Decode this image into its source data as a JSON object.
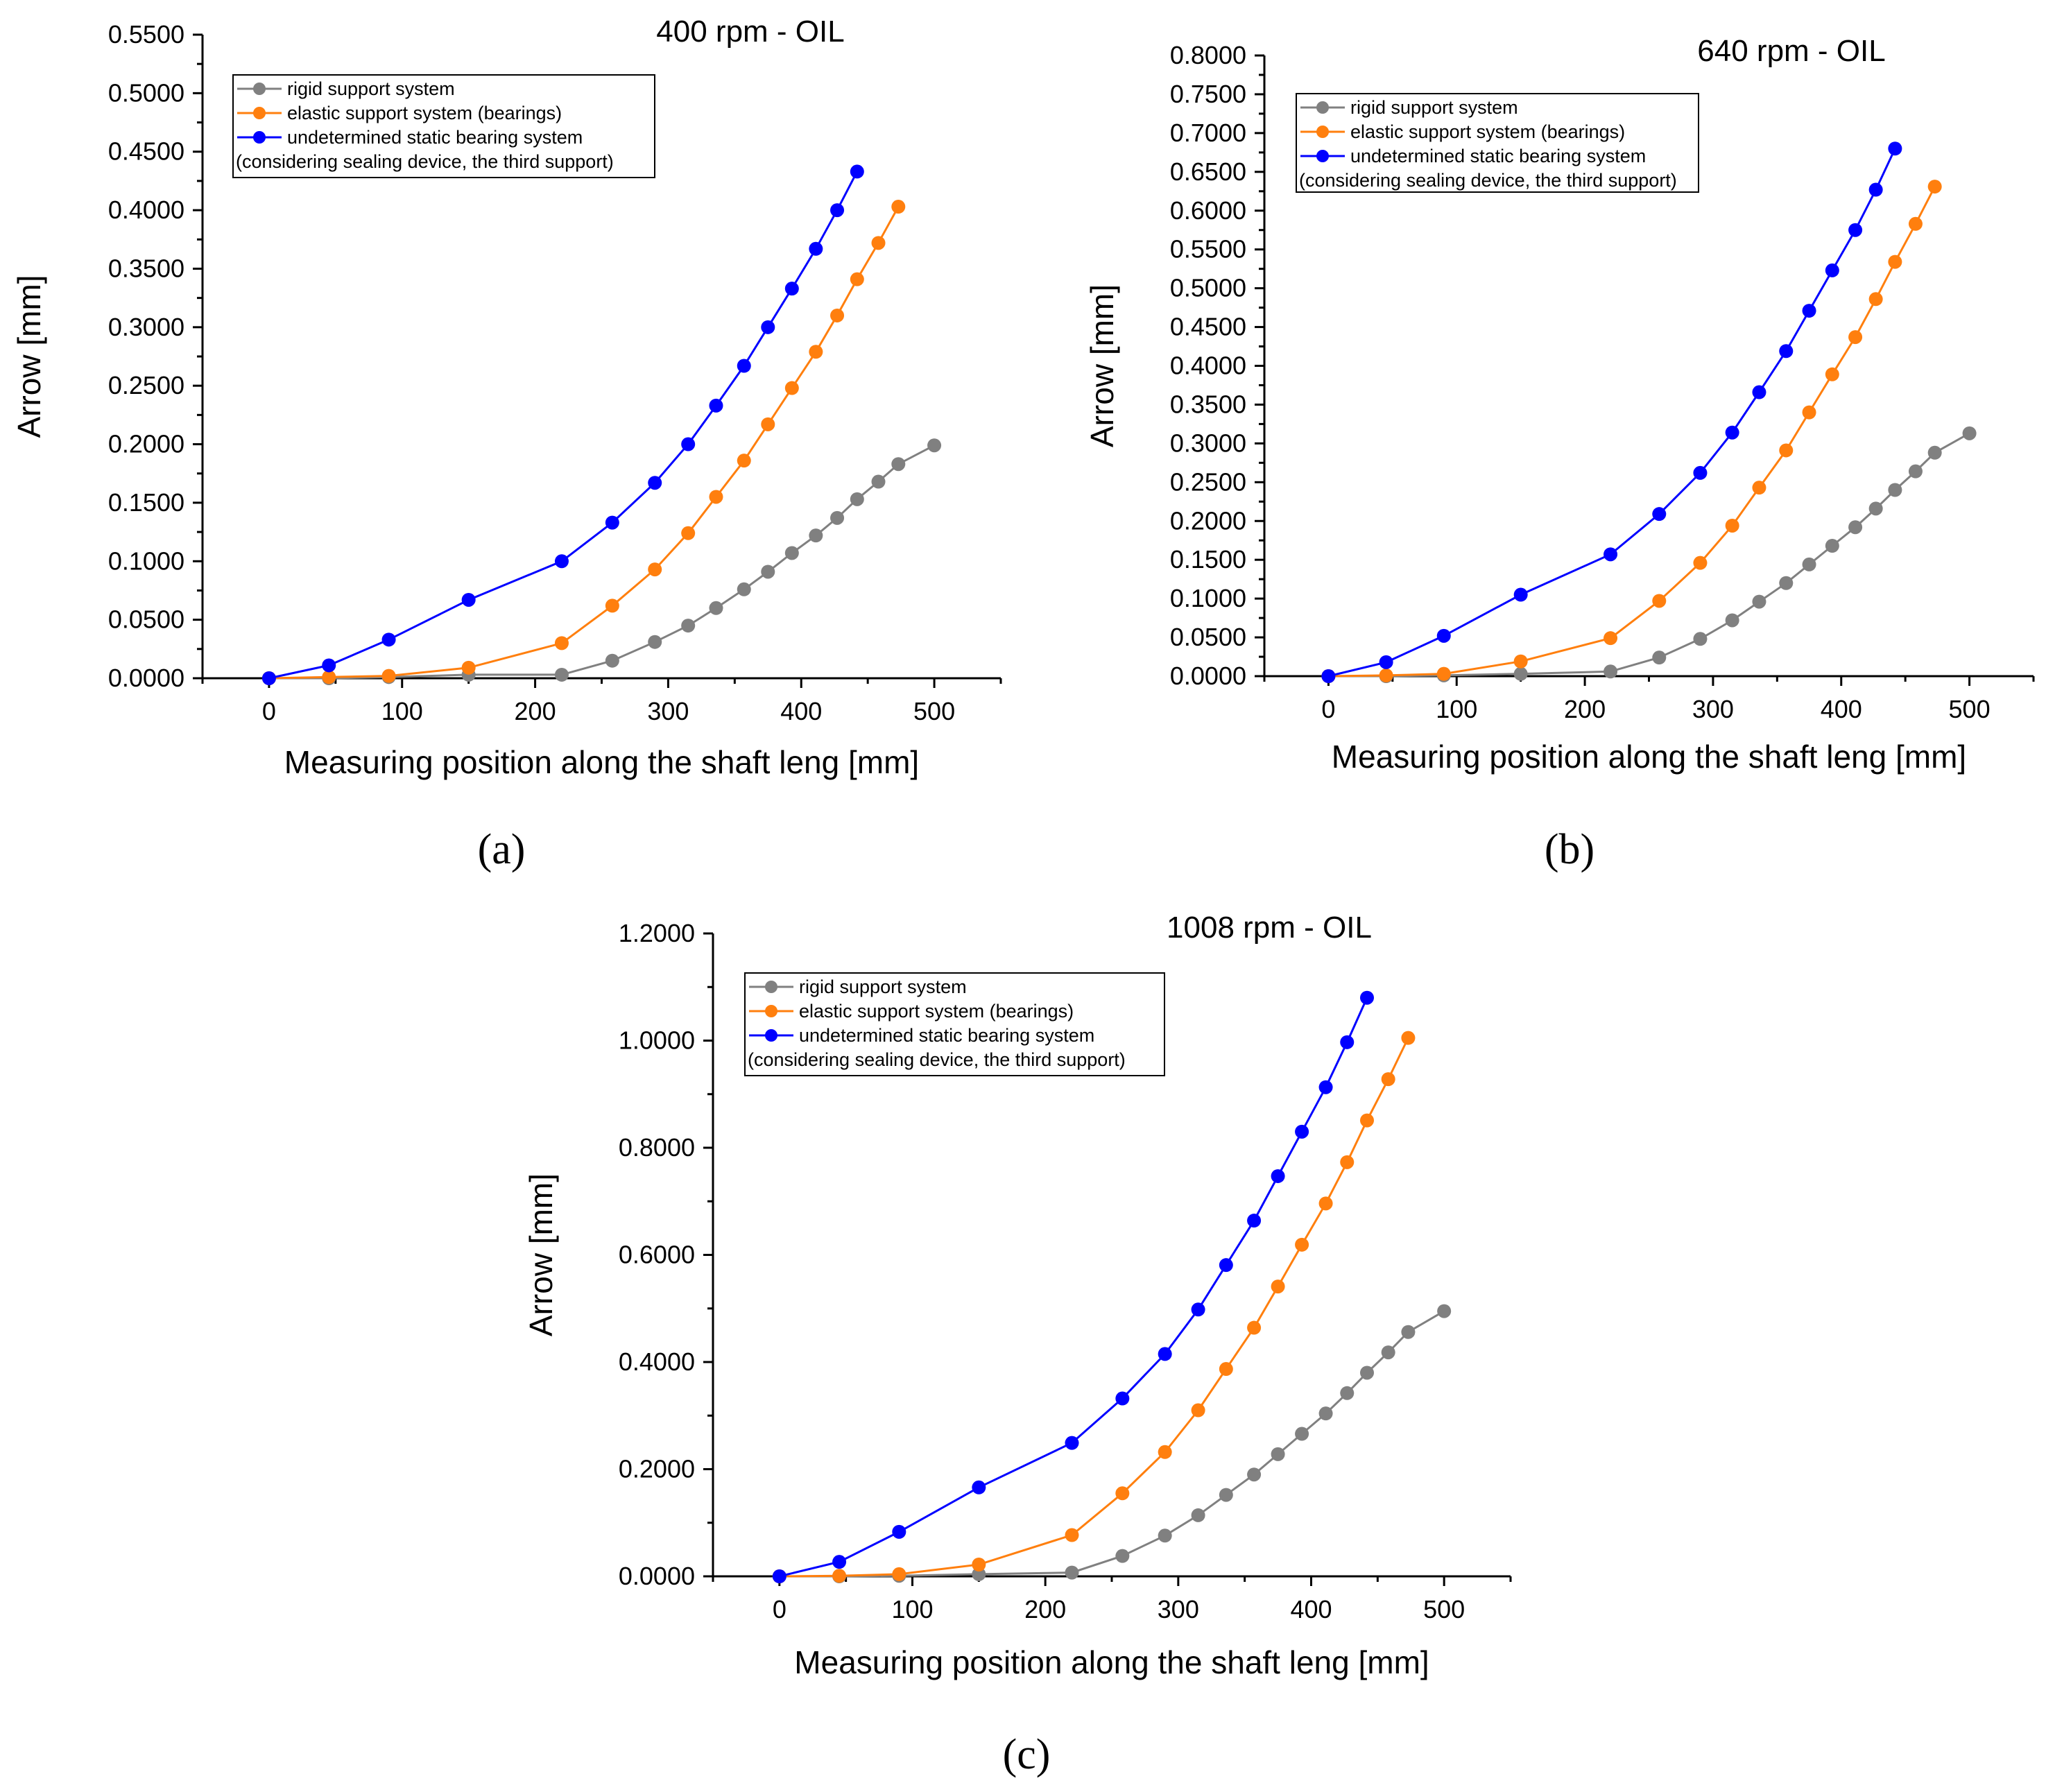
{
  "chart_data": [
    {
      "type": "line",
      "panel": "a",
      "title": "400 rpm - OIL",
      "xlabel": "Measuring position along the shaft leng [mm]",
      "ylabel": "Arrow [mm]",
      "xlim": [
        -50,
        550
      ],
      "ylim": [
        0,
        0.55
      ],
      "xticks": [
        0,
        100,
        200,
        300,
        400,
        500
      ],
      "xtick_labels": [
        "0",
        "100",
        "200",
        "300",
        "400",
        "500"
      ],
      "yticks": [
        0,
        0.05,
        0.1,
        0.15,
        0.2,
        0.25,
        0.3,
        0.35,
        0.4,
        0.45,
        0.5,
        0.55
      ],
      "ytick_labels": [
        "0.0000",
        "0.0500",
        "0.1000",
        "0.1500",
        "0.2000",
        "0.2500",
        "0.3000",
        "0.3500",
        "0.4000",
        "0.4500",
        "0.5000",
        "0.5500"
      ],
      "legend_position": "top-left",
      "legend_note": "(considering sealing device, the third support)",
      "series": [
        {
          "name": "rigid support system",
          "color": "#808080",
          "x": [
            0,
            45,
            90,
            150,
            220,
            258,
            290,
            315,
            336,
            357,
            375,
            393,
            411,
            427,
            442,
            458,
            473,
            500
          ],
          "y": [
            0,
            0,
            0.001,
            0.003,
            0.003,
            0.015,
            0.031,
            0.045,
            0.06,
            0.076,
            0.091,
            0.107,
            0.122,
            0.137,
            0.153,
            0.168,
            0.183,
            0.199
          ]
        },
        {
          "name": "elastic support system (bearings)",
          "color": "#FF7F0E",
          "x": [
            0,
            45,
            90,
            150,
            220,
            258,
            290,
            315,
            336,
            357,
            375,
            393,
            411,
            427,
            442,
            458,
            473
          ],
          "y": [
            0,
            0.001,
            0.002,
            0.009,
            0.03,
            0.062,
            0.093,
            0.124,
            0.155,
            0.186,
            0.217,
            0.248,
            0.279,
            0.31,
            0.341,
            0.372,
            0.403
          ]
        },
        {
          "name": "undetermined static bearing system",
          "color": "#0000FF",
          "x": [
            0,
            45,
            90,
            150,
            220,
            258,
            290,
            315,
            336,
            357,
            375,
            393,
            411,
            427,
            442
          ],
          "y": [
            0,
            0.011,
            0.033,
            0.067,
            0.1,
            0.133,
            0.167,
            0.2,
            0.233,
            0.267,
            0.3,
            0.333,
            0.367,
            0.4,
            0.433
          ]
        }
      ]
    },
    {
      "type": "line",
      "panel": "b",
      "title": "640 rpm - OIL",
      "xlabel": "Measuring position along the shaft leng [mm]",
      "ylabel": "Arrow [mm]",
      "xlim": [
        -50,
        550
      ],
      "ylim": [
        0,
        0.8
      ],
      "xticks": [
        0,
        100,
        200,
        300,
        400,
        500
      ],
      "xtick_labels": [
        "0",
        "100",
        "200",
        "300",
        "400",
        "500"
      ],
      "yticks": [
        0,
        0.05,
        0.1,
        0.15,
        0.2,
        0.25,
        0.3,
        0.35,
        0.4,
        0.45,
        0.5,
        0.55,
        0.6,
        0.65,
        0.7,
        0.75,
        0.8
      ],
      "ytick_labels": [
        "0.0000",
        "0.0500",
        "0.1000",
        "0.1500",
        "0.2000",
        "0.2500",
        "0.3000",
        "0.3500",
        "0.4000",
        "0.4500",
        "0.5000",
        "0.5500",
        "0.6000",
        "0.6500",
        "0.7000",
        "0.7500",
        "0.8000"
      ],
      "legend_position": "top-left",
      "legend_note": "(considering sealing device, the third support)",
      "series": [
        {
          "name": "rigid support system",
          "color": "#808080",
          "x": [
            0,
            45,
            90,
            150,
            220,
            258,
            290,
            315,
            336,
            357,
            375,
            393,
            411,
            427,
            442,
            458,
            473,
            500
          ],
          "y": [
            0,
            0,
            0.001,
            0.003,
            0.006,
            0.024,
            0.048,
            0.072,
            0.096,
            0.12,
            0.144,
            0.168,
            0.192,
            0.216,
            0.24,
            0.264,
            0.288,
            0.313
          ]
        },
        {
          "name": "elastic support system (bearings)",
          "color": "#FF7F0E",
          "x": [
            0,
            45,
            90,
            150,
            220,
            258,
            290,
            315,
            336,
            357,
            375,
            393,
            411,
            427,
            442,
            458,
            473
          ],
          "y": [
            0,
            0.001,
            0.003,
            0.019,
            0.049,
            0.097,
            0.146,
            0.194,
            0.243,
            0.291,
            0.34,
            0.389,
            0.437,
            0.486,
            0.534,
            0.583,
            0.631
          ]
        },
        {
          "name": "undetermined static bearing system",
          "color": "#0000FF",
          "x": [
            0,
            45,
            90,
            150,
            220,
            258,
            290,
            315,
            336,
            357,
            375,
            393,
            411,
            427,
            442
          ],
          "y": [
            0,
            0.018,
            0.052,
            0.105,
            0.157,
            0.209,
            0.262,
            0.314,
            0.366,
            0.419,
            0.471,
            0.523,
            0.575,
            0.627,
            0.68
          ]
        }
      ]
    },
    {
      "type": "line",
      "panel": "c",
      "title": "1008 rpm - OIL",
      "xlabel": "Measuring position along the shaft leng [mm]",
      "ylabel": "Arrow [mm]",
      "xlim": [
        -50,
        550
      ],
      "ylim": [
        0,
        1.2
      ],
      "xticks": [
        0,
        100,
        200,
        300,
        400,
        500
      ],
      "xtick_labels": [
        "0",
        "100",
        "200",
        "300",
        "400",
        "500"
      ],
      "yticks": [
        0,
        0.2,
        0.4,
        0.6,
        0.8,
        1.0,
        1.2
      ],
      "ytick_labels": [
        "0.0000",
        "0.2000",
        "0.4000",
        "0.6000",
        "0.8000",
        "1.0000",
        "1.2000"
      ],
      "legend_position": "top-left",
      "legend_note": "(considering sealing device, the third support)",
      "series": [
        {
          "name": "rigid support system",
          "color": "#808080",
          "x": [
            0,
            45,
            90,
            150,
            220,
            258,
            290,
            315,
            336,
            357,
            375,
            393,
            411,
            427,
            442,
            458,
            473,
            500
          ],
          "y": [
            0,
            0,
            0.001,
            0.004,
            0.007,
            0.038,
            0.076,
            0.114,
            0.152,
            0.19,
            0.228,
            0.266,
            0.304,
            0.342,
            0.38,
            0.418,
            0.456,
            0.495
          ]
        },
        {
          "name": "elastic support system (bearings)",
          "color": "#FF7F0E",
          "x": [
            0,
            45,
            90,
            150,
            220,
            258,
            290,
            315,
            336,
            357,
            375,
            393,
            411,
            427,
            442,
            458,
            473
          ],
          "y": [
            0,
            0.001,
            0.004,
            0.022,
            0.077,
            0.155,
            0.232,
            0.31,
            0.387,
            0.464,
            0.541,
            0.619,
            0.696,
            0.773,
            0.851,
            0.928,
            1.005
          ]
        },
        {
          "name": "undetermined static bearing system",
          "color": "#0000FF",
          "x": [
            0,
            45,
            90,
            150,
            220,
            258,
            290,
            315,
            336,
            357,
            375,
            393,
            411,
            427,
            442
          ],
          "y": [
            0,
            0.027,
            0.083,
            0.166,
            0.249,
            0.332,
            0.415,
            0.498,
            0.581,
            0.664,
            0.747,
            0.83,
            0.913,
            0.997,
            1.08
          ]
        }
      ]
    }
  ],
  "panel_labels": [
    "(a)",
    "(b)",
    "(c)"
  ]
}
